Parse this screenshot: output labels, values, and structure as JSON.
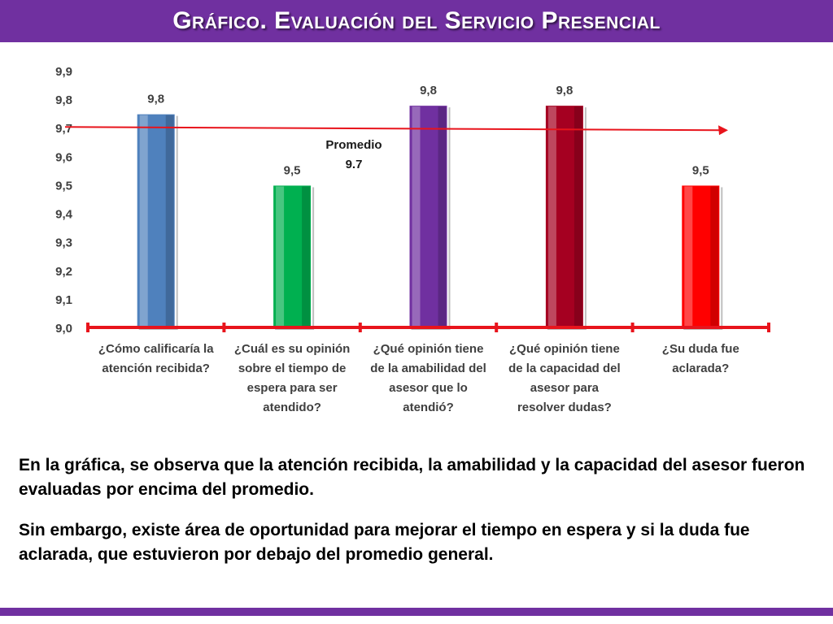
{
  "header": {
    "title": "Gráfico. Evaluación del Servicio Presencial"
  },
  "colors": {
    "header_bg": "#7030a0",
    "axis": "#e8141c",
    "avg_line": "#e8141c"
  },
  "chart_data": {
    "type": "bar",
    "categories": [
      [
        "¿Cómo calificaría la",
        "atención recibida?"
      ],
      [
        "¿Cuál es su opinión",
        "sobre el tiempo de",
        "espera para ser",
        "atendido?"
      ],
      [
        "¿Qué opinión tiene",
        "de la amabilidad del",
        "asesor que lo",
        "atendió?"
      ],
      [
        "¿Qué opinión tiene",
        "de la capacidad del",
        "asesor para",
        "resolver dudas?"
      ],
      [
        "¿Su duda fue",
        "aclarada?"
      ]
    ],
    "values": [
      9.75,
      9.5,
      9.78,
      9.78,
      9.5
    ],
    "data_labels": [
      "9,8",
      "9,5",
      "9,8",
      "9,8",
      "9,5"
    ],
    "bar_colors": [
      "#4f81bd",
      "#00b050",
      "#7030a0",
      "#a50021",
      "#ff0000"
    ],
    "ylim": [
      9.0,
      9.9
    ],
    "yticks": [
      "9,0",
      "9,1",
      "9,2",
      "9,3",
      "9,4",
      "9,5",
      "9,6",
      "9,7",
      "9,8",
      "9,9"
    ],
    "average": {
      "value": 9.7,
      "label_line1": "Promedio",
      "label_line2": "9.7"
    },
    "grid": false,
    "legend": "none"
  },
  "summary": {
    "paragraph1": "En la gráfica, se observa que la atención recibida, la amabilidad y  la capacidad del asesor fueron evaluadas por encima del promedio.",
    "paragraph2": "Sin embargo, existe área de oportunidad para mejorar el tiempo en espera y si la duda fue aclarada, que estuvieron por debajo del promedio general."
  }
}
